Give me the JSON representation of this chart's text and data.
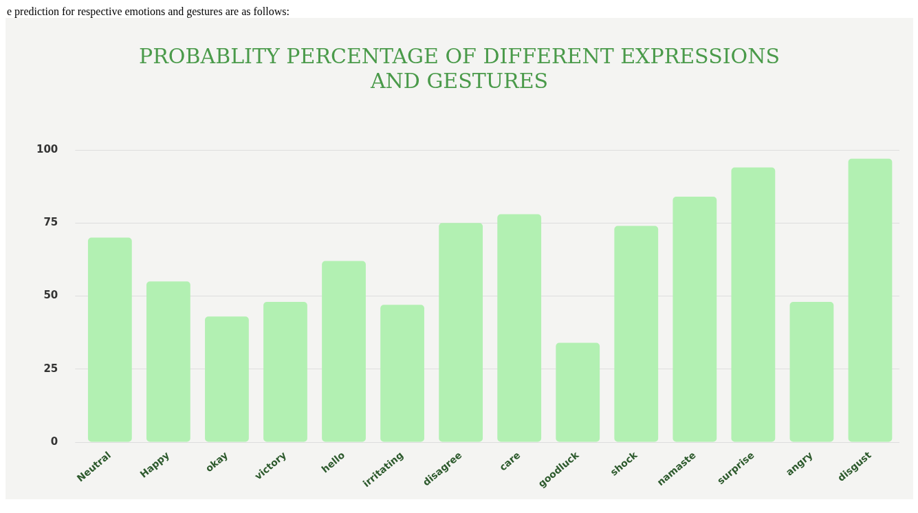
{
  "chart_data": {
    "type": "bar",
    "title": "PROBABLITY PERCENTAGE OF DIFFERENT EXPRESSIONS AND GESTURES",
    "annotations": [
      "e prediction for respective emotions and gestures are as follows:"
    ],
    "categories": [
      "Neutral",
      "Happy",
      "okay",
      "victory",
      "hello",
      "irritating",
      "disagree",
      "care",
      "goodluck",
      "shock",
      "namaste",
      "surprise",
      "angry",
      "disgust"
    ],
    "values": [
      70,
      55,
      43,
      48,
      62,
      47,
      75,
      78,
      34,
      74,
      84,
      94,
      48,
      97
    ],
    "color": "#b2f0b2",
    "ylim": [
      0,
      100
    ],
    "yticks": [
      0,
      25,
      50,
      75,
      100
    ],
    "grid": "y"
  }
}
